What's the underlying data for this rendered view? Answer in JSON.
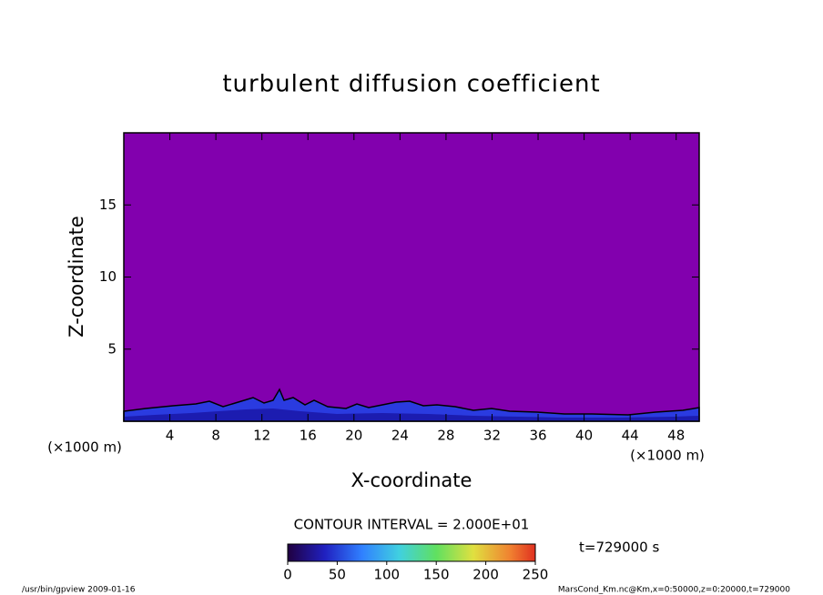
{
  "chart_data": {
    "type": "contour",
    "title": "turbulent diffusion coefficient",
    "x_label": "X-coordinate",
    "y_label": "Z-coordinate",
    "x_unit": "(×1000 m)",
    "y_unit": "(×1000 m)",
    "xlim": [
      0,
      50
    ],
    "xticks": [
      4,
      8,
      12,
      16,
      20,
      24,
      28,
      32,
      36,
      40,
      44,
      48
    ],
    "ylim": [
      0,
      20
    ],
    "yticks": [
      5,
      10,
      15
    ],
    "fill_color": "#8200ae",
    "contour_interval": "CONTOUR INTERVAL = 2.000E+01",
    "colorbar": {
      "lim": [
        0,
        250
      ],
      "ticks": [
        0,
        50,
        100,
        150,
        200,
        250
      ]
    },
    "time_label": "t=729000 s",
    "footer_left": "/usr/bin/gpview  2009-01-16",
    "footer_right": "MarsCond_Km.nc@Km,x=0:50000,z=0:20000,t=729000"
  }
}
